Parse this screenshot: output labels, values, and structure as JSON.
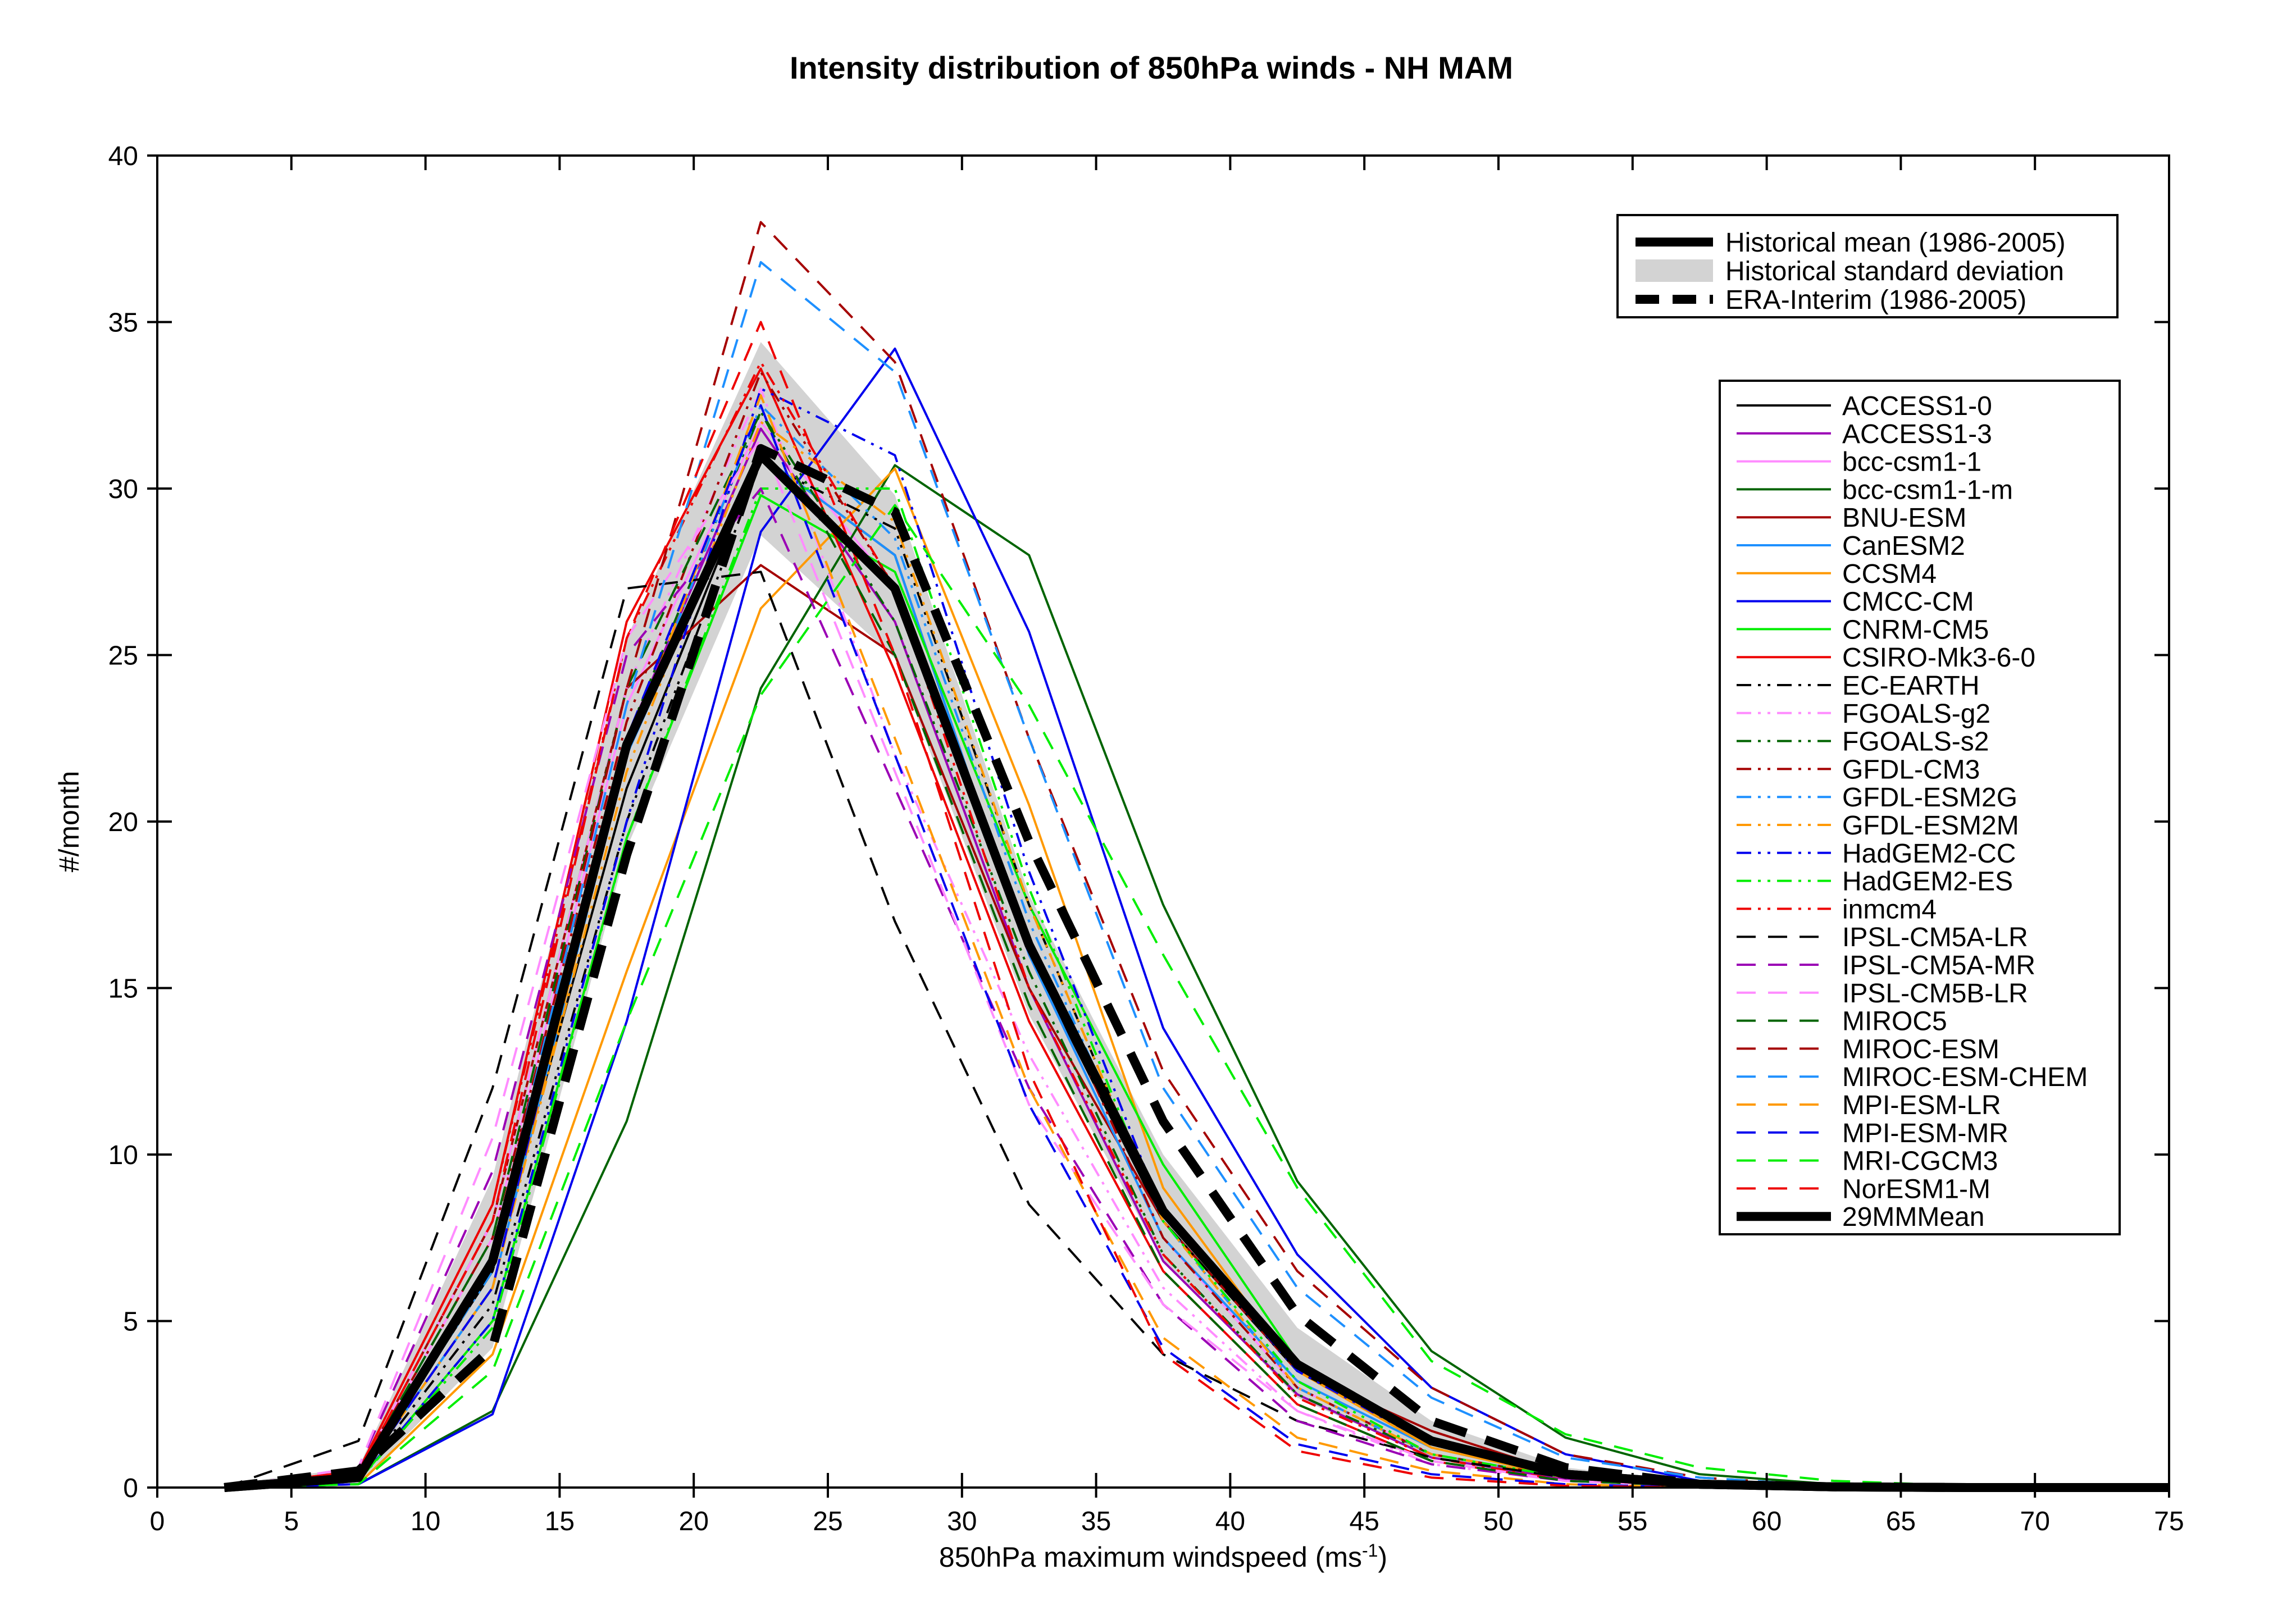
{
  "chart_data": {
    "type": "line",
    "title": "Intensity distribution of 850hPa winds - NH MAM",
    "xlabel": "850hPa maximum windspeed (ms",
    "xlabel_sup": "-1",
    "xlabel_close": ")",
    "ylabel": "#/month",
    "xlim": [
      0,
      75
    ],
    "ylim": [
      0,
      40
    ],
    "xticks": [
      "0",
      "5",
      "10",
      "15",
      "20",
      "25",
      "30",
      "35",
      "40",
      "45",
      "50",
      "55",
      "60",
      "65",
      "70",
      "75"
    ],
    "yticks": [
      "0",
      "5",
      "10",
      "15",
      "20",
      "25",
      "30",
      "35",
      "40"
    ],
    "grid": false,
    "x": [
      2.5,
      7.5,
      12.5,
      17.5,
      22.5,
      27.5,
      32.5,
      37.5,
      42.5,
      47.5,
      52.5,
      57.5,
      62.5,
      67.5,
      72.5,
      75
    ],
    "std_band": {
      "name": "Historical standard deviation",
      "lower": [
        0.0,
        0.1,
        4.2,
        19.2,
        28.6,
        24.9,
        14.2,
        6.8,
        2.7,
        0.9,
        0.2,
        0.05,
        0.0,
        0.0,
        0.0,
        0.0
      ],
      "upper": [
        0.1,
        0.6,
        9.3,
        25.5,
        34.4,
        29.8,
        17.8,
        10.0,
        4.8,
        2.0,
        0.6,
        0.15,
        0.05,
        0.0,
        0.0,
        0.0
      ],
      "color": "#d3d3d3"
    },
    "reference_series": [
      {
        "name": "Historical mean (1986-2005)",
        "values": [
          0.0,
          0.3,
          6.8,
          22.3,
          31.0,
          27.0,
          16.3,
          8.3,
          3.7,
          1.4,
          0.4,
          0.1,
          0.02,
          0.0,
          0.0,
          0.0
        ],
        "color": "#000000",
        "dash": "solid",
        "width": 16
      },
      {
        "name": "ERA-Interim (1986-2005)",
        "values": [
          0.0,
          0.5,
          4.2,
          19.0,
          31.2,
          29.3,
          19.4,
          11.0,
          5.2,
          2.0,
          0.6,
          0.1,
          0.02,
          0.0,
          0.0,
          0.0
        ],
        "color": "#000000",
        "dash": "long",
        "width": 16
      },
      {
        "name": "29MMMean",
        "values": [
          0.0,
          0.3,
          6.8,
          22.3,
          31.0,
          27.0,
          16.3,
          8.3,
          3.7,
          1.4,
          0.4,
          0.1,
          0.02,
          0.0,
          0.0,
          0.0
        ],
        "color": "#000000",
        "dash": "solid",
        "width": 16
      }
    ],
    "series": [
      {
        "name": "ACCESS1-0",
        "color": "#000000",
        "dash": "solid",
        "values": [
          0.0,
          0.3,
          6.5,
          21.0,
          31.0,
          28.0,
          16.0,
          8.0,
          3.5,
          1.4,
          0.4,
          0.1,
          0.0,
          0.0,
          0.0,
          0.0
        ]
      },
      {
        "name": "ACCESS1-3",
        "color": "#9b00b5",
        "dash": "solid",
        "values": [
          0.0,
          0.3,
          6.8,
          22.5,
          31.8,
          26.0,
          15.0,
          6.8,
          2.8,
          0.9,
          0.25,
          0.05,
          0.0,
          0.0,
          0.0,
          0.0
        ]
      },
      {
        "name": "bcc-csm1-1",
        "color": "#ff8cff",
        "dash": "solid",
        "values": [
          0.0,
          0.4,
          7.5,
          23.5,
          32.0,
          27.0,
          16.0,
          7.5,
          3.0,
          1.0,
          0.3,
          0.05,
          0.0,
          0.0,
          0.0,
          0.0
        ]
      },
      {
        "name": "bcc-csm1-1-m",
        "color": "#006400",
        "dash": "solid",
        "values": [
          0.0,
          0.1,
          2.3,
          11.0,
          24.0,
          30.7,
          28.0,
          17.5,
          9.2,
          4.1,
          1.5,
          0.4,
          0.1,
          0.0,
          0.0,
          0.0
        ]
      },
      {
        "name": "BNU-ESM",
        "color": "#a50000",
        "dash": "solid",
        "values": [
          0.0,
          0.4,
          8.0,
          24.0,
          27.7,
          25.0,
          15.0,
          8.0,
          3.5,
          1.7,
          0.4,
          0.1,
          0.0,
          0.0,
          0.0,
          0.0
        ]
      },
      {
        "name": "CanESM2",
        "color": "#1e90ff",
        "dash": "solid",
        "values": [
          0.0,
          0.3,
          6.0,
          22.0,
          31.0,
          28.0,
          16.0,
          7.5,
          3.2,
          1.2,
          0.3,
          0.05,
          0.0,
          0.0,
          0.0,
          0.0
        ]
      },
      {
        "name": "CCSM4",
        "color": "#ff9900",
        "dash": "solid",
        "values": [
          0.0,
          0.1,
          4.0,
          15.5,
          26.4,
          30.6,
          20.5,
          9.0,
          3.5,
          1.2,
          0.3,
          0.05,
          0.0,
          0.0,
          0.0,
          0.0
        ]
      },
      {
        "name": "CMCC-CM",
        "color": "#0000ee",
        "dash": "solid",
        "values": [
          0.0,
          0.1,
          2.2,
          14.0,
          28.7,
          34.2,
          25.7,
          13.8,
          7.0,
          3.0,
          1.0,
          0.2,
          0.05,
          0.0,
          0.0,
          0.0
        ]
      },
      {
        "name": "CNRM-CM5",
        "color": "#00ee00",
        "dash": "solid",
        "values": [
          0.0,
          0.2,
          5.0,
          19.5,
          29.8,
          27.5,
          17.5,
          9.7,
          3.8,
          1.3,
          0.3,
          0.05,
          0.0,
          0.0,
          0.0,
          0.0
        ]
      },
      {
        "name": "CSIRO-Mk3-6-0",
        "color": "#ee0000",
        "dash": "solid",
        "values": [
          0.0,
          0.5,
          8.5,
          26.0,
          33.6,
          24.5,
          14.0,
          6.5,
          2.5,
          0.8,
          0.2,
          0.05,
          0.0,
          0.0,
          0.0,
          0.0
        ]
      },
      {
        "name": "EC-EARTH",
        "color": "#000000",
        "dash": "dashdotdot",
        "values": [
          0.0,
          0.3,
          5.5,
          20.0,
          30.8,
          28.8,
          17.5,
          8.0,
          3.5,
          1.4,
          0.4,
          0.1,
          0.0,
          0.0,
          0.0,
          0.0
        ]
      },
      {
        "name": "FGOALS-g2",
        "color": "#ff8cff",
        "dash": "dashdotdot",
        "values": [
          0.0,
          0.4,
          8.0,
          24.0,
          33.0,
          22.0,
          13.0,
          6.0,
          2.3,
          0.7,
          0.2,
          0.05,
          0.0,
          0.0,
          0.0,
          0.0
        ]
      },
      {
        "name": "FGOALS-s2",
        "color": "#006400",
        "dash": "dashdotdot",
        "values": [
          0.0,
          0.3,
          6.5,
          22.5,
          32.3,
          26.0,
          15.5,
          7.0,
          2.8,
          1.0,
          0.3,
          0.05,
          0.0,
          0.0,
          0.0,
          0.0
        ]
      },
      {
        "name": "GFDL-CM3",
        "color": "#a50000",
        "dash": "dashdotdot",
        "values": [
          0.0,
          0.4,
          7.5,
          23.0,
          33.5,
          27.0,
          16.5,
          7.5,
          3.0,
          1.0,
          0.3,
          0.05,
          0.0,
          0.0,
          0.0,
          0.0
        ]
      },
      {
        "name": "GFDL-ESM2G",
        "color": "#1e90ff",
        "dash": "dashdotdot",
        "values": [
          0.0,
          0.3,
          6.5,
          22.0,
          32.5,
          28.5,
          17.0,
          8.0,
          3.0,
          1.0,
          0.3,
          0.05,
          0.0,
          0.0,
          0.0,
          0.0
        ]
      },
      {
        "name": "GFDL-ESM2M",
        "color": "#ff9900",
        "dash": "dashdotdot",
        "values": [
          0.0,
          0.3,
          6.0,
          21.5,
          32.0,
          29.0,
          17.5,
          8.0,
          3.0,
          1.0,
          0.3,
          0.05,
          0.0,
          0.0,
          0.0,
          0.0
        ]
      },
      {
        "name": "HadGEM2-CC",
        "color": "#0000ee",
        "dash": "dashdotdot",
        "values": [
          0.0,
          0.2,
          5.0,
          20.0,
          33.0,
          31.0,
          18.5,
          8.2,
          3.5,
          1.3,
          0.3,
          0.05,
          0.0,
          0.0,
          0.0,
          0.0
        ]
      },
      {
        "name": "HadGEM2-ES",
        "color": "#00ee00",
        "dash": "dashdotdot",
        "values": [
          0.0,
          0.2,
          4.8,
          19.5,
          30.0,
          30.0,
          18.0,
          8.0,
          3.2,
          1.0,
          0.3,
          0.05,
          0.0,
          0.0,
          0.0,
          0.0
        ]
      },
      {
        "name": "inmcm4",
        "color": "#ee0000",
        "dash": "dashdotdot",
        "values": [
          0.0,
          0.5,
          8.5,
          25.5,
          33.8,
          27.0,
          15.0,
          7.0,
          2.7,
          0.9,
          0.2,
          0.05,
          0.0,
          0.0,
          0.0,
          0.0
        ]
      },
      {
        "name": "IPSL-CM5A-LR",
        "color": "#000000",
        "dash": "dashed",
        "values": [
          0.0,
          1.4,
          12.0,
          27.0,
          27.5,
          17.0,
          8.5,
          4.0,
          2.0,
          0.9,
          0.3,
          0.05,
          0.0,
          0.0,
          0.0,
          0.0
        ]
      },
      {
        "name": "IPSL-CM5A-MR",
        "color": "#9b00b5",
        "dash": "dashed",
        "values": [
          0.0,
          0.6,
          9.5,
          25.0,
          30.0,
          21.0,
          12.0,
          5.5,
          2.0,
          0.7,
          0.2,
          0.05,
          0.0,
          0.0,
          0.0,
          0.0
        ]
      },
      {
        "name": "IPSL-CM5B-LR",
        "color": "#ff8cff",
        "dash": "dashed",
        "values": [
          0.0,
          0.6,
          10.5,
          25.5,
          31.5,
          21.5,
          11.5,
          5.5,
          2.3,
          0.8,
          0.2,
          0.05,
          0.0,
          0.0,
          0.0,
          0.0
        ]
      },
      {
        "name": "MIROC5",
        "color": "#006400",
        "dash": "dashed",
        "values": [
          0.0,
          0.4,
          7.5,
          24.0,
          32.3,
          25.0,
          14.5,
          6.5,
          2.5,
          0.8,
          0.2,
          0.05,
          0.0,
          0.0,
          0.0,
          0.0
        ]
      },
      {
        "name": "MIROC-ESM",
        "color": "#a50000",
        "dash": "dashed",
        "values": [
          0.0,
          0.4,
          7.0,
          24.0,
          38.0,
          33.8,
          22.5,
          12.5,
          6.5,
          3.0,
          1.0,
          0.3,
          0.05,
          0.0,
          0.0,
          0.0
        ]
      },
      {
        "name": "MIROC-ESM-CHEM",
        "color": "#1e90ff",
        "dash": "dashed",
        "values": [
          0.0,
          0.4,
          7.0,
          23.5,
          36.8,
          33.5,
          22.5,
          12.0,
          6.0,
          2.7,
          0.9,
          0.3,
          0.05,
          0.0,
          0.0,
          0.0
        ]
      },
      {
        "name": "MPI-ESM-LR",
        "color": "#ff9900",
        "dash": "dashed",
        "values": [
          0.0,
          0.3,
          6.0,
          22.0,
          32.8,
          22.5,
          12.0,
          4.5,
          1.5,
          0.5,
          0.1,
          0.0,
          0.0,
          0.0,
          0.0,
          0.0
        ]
      },
      {
        "name": "MPI-ESM-MR",
        "color": "#0000ee",
        "dash": "dashed",
        "values": [
          0.0,
          0.3,
          6.0,
          22.5,
          32.5,
          22.0,
          11.5,
          4.2,
          1.3,
          0.4,
          0.1,
          0.0,
          0.0,
          0.0,
          0.0,
          0.0
        ]
      },
      {
        "name": "MRI-CGCM3",
        "color": "#00ee00",
        "dash": "dashed",
        "values": [
          0.0,
          0.1,
          3.5,
          14.0,
          23.8,
          29.5,
          23.5,
          16.0,
          9.0,
          3.8,
          1.6,
          0.6,
          0.2,
          0.05,
          0.0,
          0.0
        ]
      },
      {
        "name": "NorESM1-M",
        "color": "#ee0000",
        "dash": "dashed",
        "values": [
          0.0,
          0.4,
          8.0,
          25.5,
          35.0,
          25.0,
          12.5,
          4.0,
          1.1,
          0.3,
          0.05,
          0.0,
          0.0,
          0.0,
          0.0,
          0.0
        ]
      }
    ],
    "legend1": {
      "placement": "top-right",
      "entries": [
        {
          "label": "Historical mean (1986-2005)",
          "kind": "solid-thick"
        },
        {
          "label": "Historical standard deviation",
          "kind": "band"
        },
        {
          "label": "ERA-Interim (1986-2005)",
          "kind": "dashed-thick"
        }
      ]
    },
    "legend2": {
      "placement": "right",
      "entries_from": "series",
      "extra_entry": {
        "label": "29MMMean",
        "kind": "solid-thick"
      }
    }
  }
}
